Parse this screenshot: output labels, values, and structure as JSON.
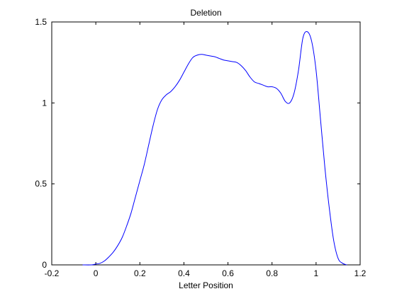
{
  "chart_data": {
    "type": "line",
    "title": "Deletion",
    "xlabel": "Letter Position",
    "ylabel": "",
    "xlim": [
      -0.2,
      1.2
    ],
    "ylim": [
      0,
      1.5
    ],
    "xticks": [
      -0.2,
      0,
      0.2,
      0.4,
      0.6,
      0.8,
      1,
      1.2
    ],
    "yticks": [
      0,
      0.5,
      1,
      1.5
    ],
    "xtick_labels": [
      "-0.2",
      "0",
      "0.2",
      "0.4",
      "0.6",
      "0.8",
      "1",
      "1.2"
    ],
    "ytick_labels": [
      "0",
      "0.5",
      "1",
      "1.5"
    ],
    "grid": false,
    "legend": "none",
    "series": [
      {
        "color": "#0000ff",
        "x": [
          -0.06,
          -0.02,
          0.0,
          0.02,
          0.04,
          0.06,
          0.08,
          0.1,
          0.12,
          0.14,
          0.16,
          0.18,
          0.2,
          0.22,
          0.24,
          0.26,
          0.28,
          0.3,
          0.32,
          0.34,
          0.36,
          0.38,
          0.4,
          0.42,
          0.44,
          0.46,
          0.48,
          0.5,
          0.52,
          0.54,
          0.56,
          0.58,
          0.6,
          0.62,
          0.64,
          0.66,
          0.68,
          0.7,
          0.72,
          0.74,
          0.76,
          0.78,
          0.8,
          0.82,
          0.84,
          0.86,
          0.88,
          0.9,
          0.92,
          0.94,
          0.96,
          0.98,
          1.0,
          1.02,
          1.04,
          1.06,
          1.08,
          1.1,
          1.12,
          1.14
        ],
        "y": [
          0.0,
          0.0,
          0.005,
          0.01,
          0.025,
          0.05,
          0.08,
          0.12,
          0.17,
          0.24,
          0.32,
          0.42,
          0.52,
          0.62,
          0.74,
          0.86,
          0.96,
          1.02,
          1.05,
          1.07,
          1.1,
          1.14,
          1.19,
          1.24,
          1.28,
          1.295,
          1.3,
          1.295,
          1.29,
          1.285,
          1.275,
          1.265,
          1.26,
          1.255,
          1.25,
          1.23,
          1.2,
          1.16,
          1.13,
          1.12,
          1.11,
          1.1,
          1.1,
          1.09,
          1.06,
          1.01,
          1.0,
          1.06,
          1.2,
          1.4,
          1.44,
          1.38,
          1.2,
          0.9,
          0.6,
          0.35,
          0.15,
          0.04,
          0.01,
          0.0
        ]
      }
    ]
  }
}
